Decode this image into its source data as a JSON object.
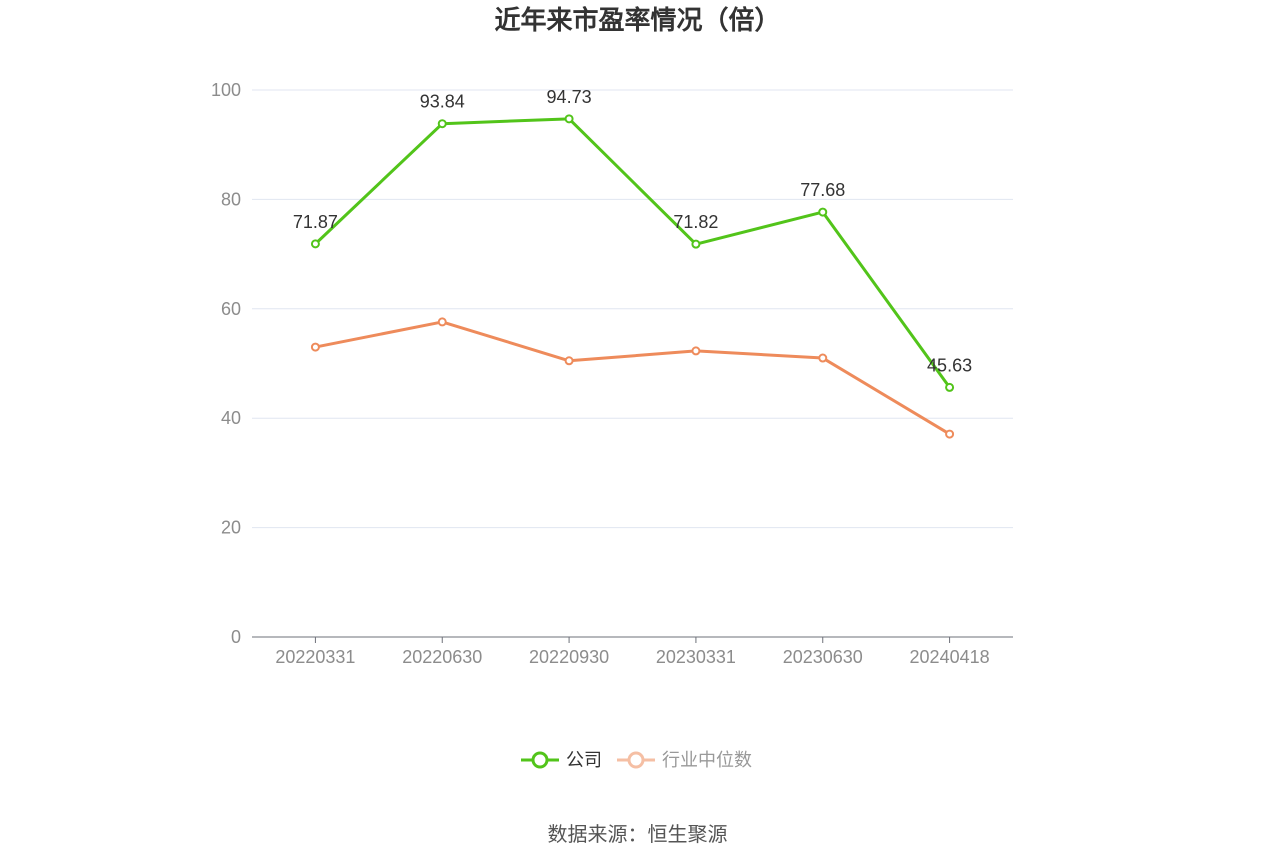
{
  "source": "数据来源：恒生聚源",
  "chart_data": {
    "type": "line",
    "title": "近年来市盈率情况（倍）",
    "xlabel": "",
    "ylabel": "",
    "categories": [
      "20220331",
      "20220630",
      "20220930",
      "20230331",
      "20230630",
      "20240418"
    ],
    "yticks": [
      "0",
      "20",
      "40",
      "60",
      "80",
      "100"
    ],
    "ylim": [
      0,
      100
    ],
    "grid": true,
    "legend_position": "bottom",
    "series": [
      {
        "name": "公司",
        "color": "#52c41a",
        "values": [
          71.87,
          93.84,
          94.73,
          71.82,
          77.68,
          45.63
        ],
        "show_labels": true
      },
      {
        "name": "行业中位数",
        "color": "#ee8b5b",
        "values": [
          53.0,
          57.6,
          50.5,
          52.3,
          51.0,
          37.1
        ],
        "show_labels": false
      }
    ]
  }
}
